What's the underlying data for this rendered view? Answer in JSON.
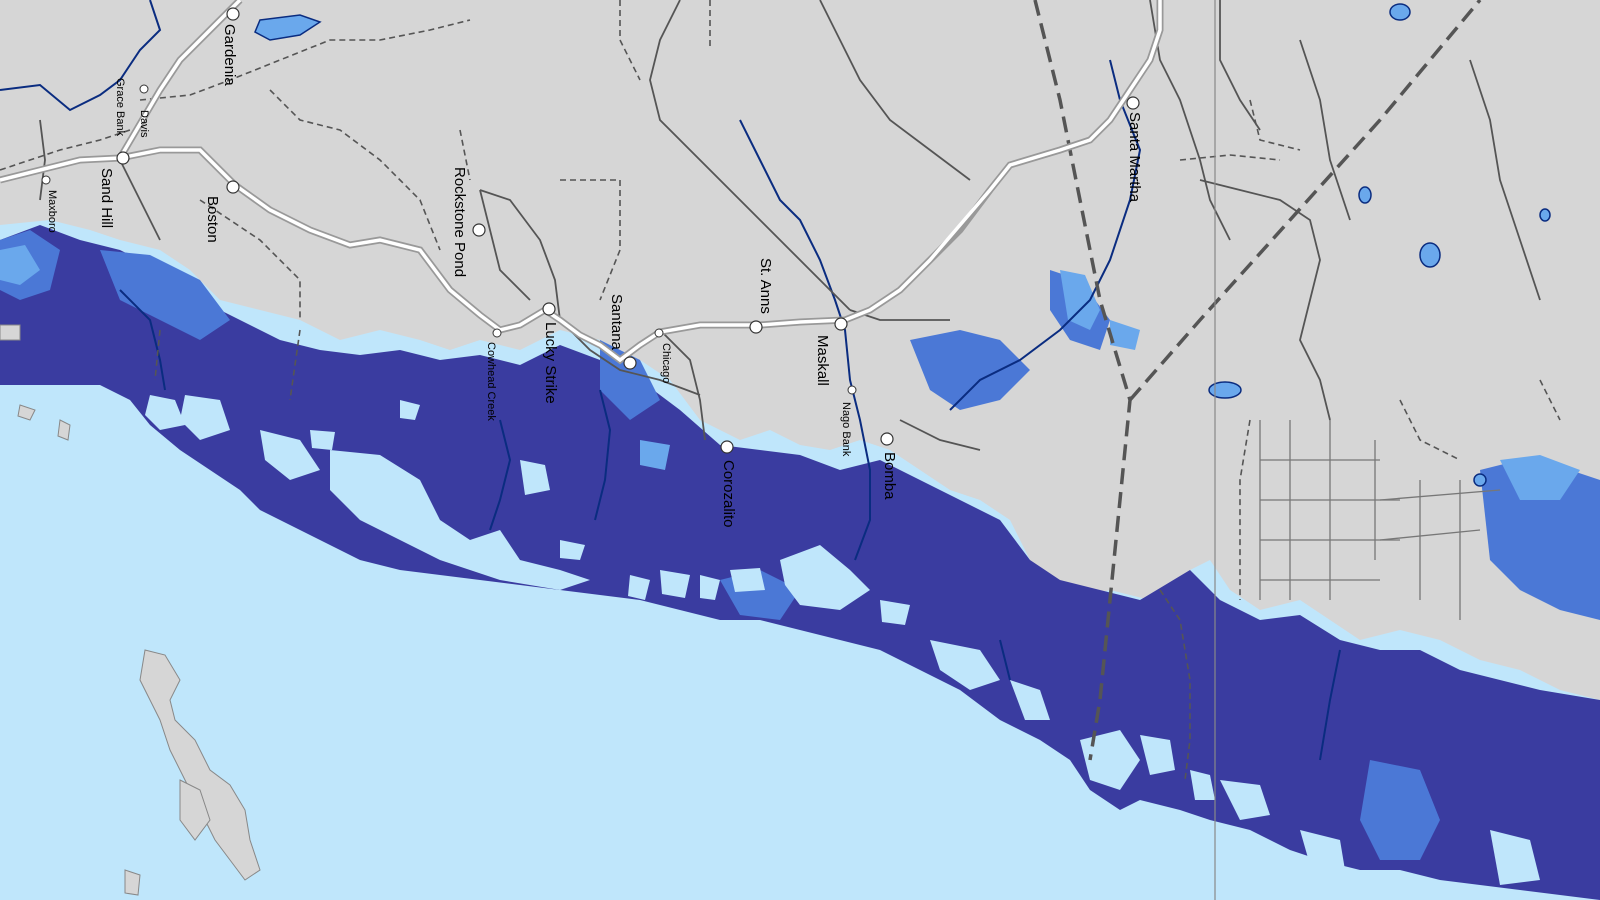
{
  "map": {
    "colors": {
      "land": "#d6d6d6",
      "sea": "#bfe6fb",
      "flood_deep": "#3a3ca0",
      "flood_mid": "#4b78d6",
      "flood_shallow": "#6aa8ec",
      "river": "#0a2c80",
      "road_major": "#ffffff",
      "road_minor": "#555555",
      "boundary": "#555555"
    },
    "places": [
      {
        "name": "Gardenia"
      },
      {
        "name": "Davis"
      },
      {
        "name": "Grace Bank"
      },
      {
        "name": "Sand Hill"
      },
      {
        "name": "Boston"
      },
      {
        "name": "Maxboro"
      },
      {
        "name": "Rockstone Pond"
      },
      {
        "name": "Cowhead Creek"
      },
      {
        "name": "Lucky Strike"
      },
      {
        "name": "Santana"
      },
      {
        "name": "Chicago"
      },
      {
        "name": "St. Anns"
      },
      {
        "name": "Maskall"
      },
      {
        "name": "Nago Bank"
      },
      {
        "name": "Corozalito"
      },
      {
        "name": "Bomba"
      },
      {
        "name": "Santa Martha"
      }
    ]
  }
}
